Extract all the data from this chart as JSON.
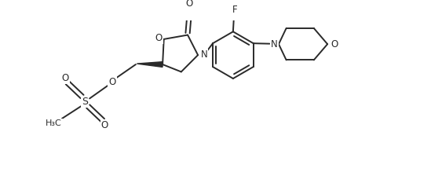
{
  "bg_color": "#ffffff",
  "line_color": "#2a2a2a",
  "line_width": 1.4,
  "font_size": 8.5,
  "fig_width": 5.49,
  "fig_height": 2.19,
  "dpi": 100,
  "xlim": [
    0,
    10
  ],
  "ylim": [
    0,
    4
  ]
}
